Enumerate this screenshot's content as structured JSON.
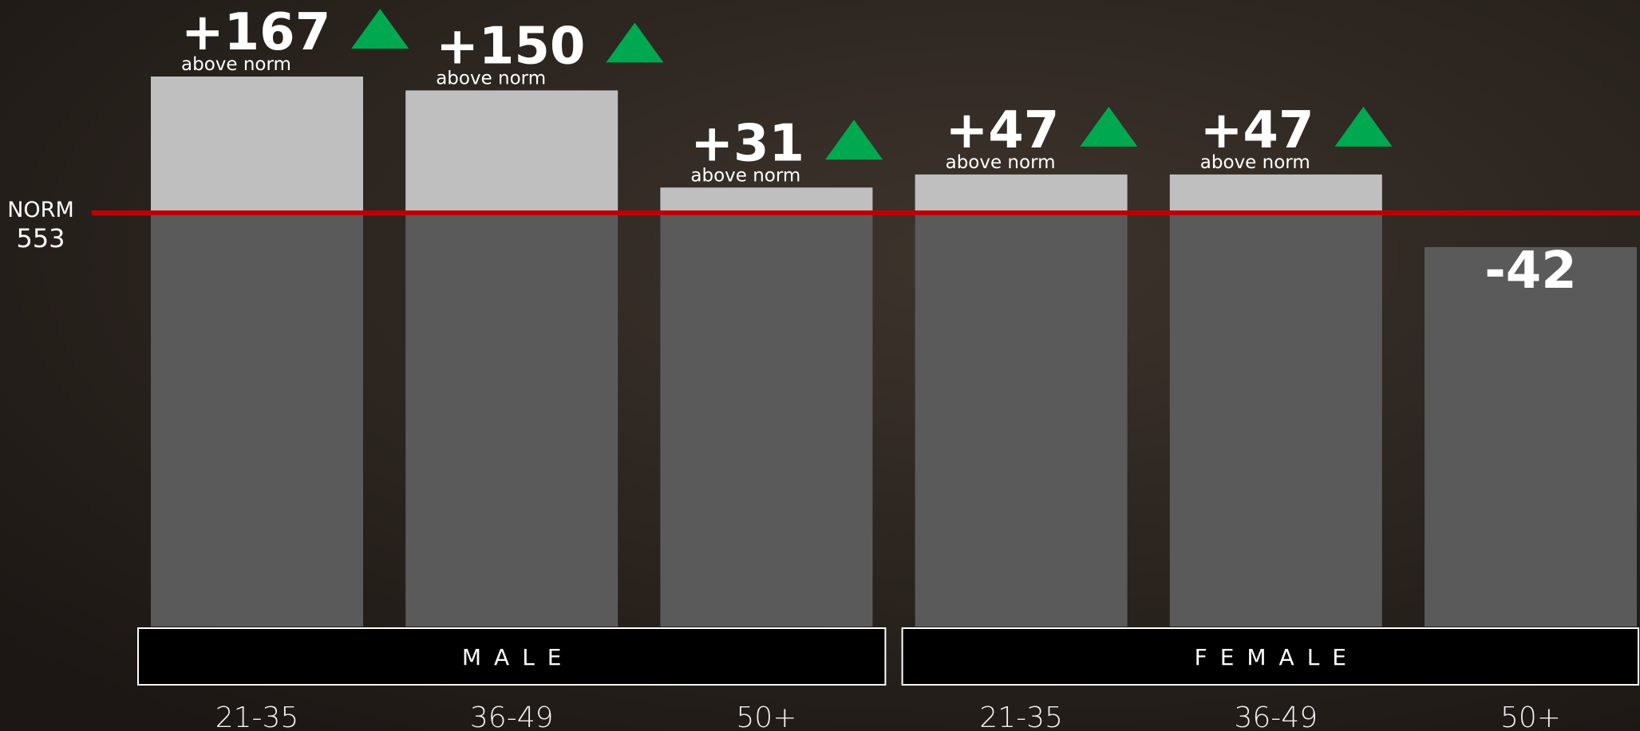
{
  "chart_data": {
    "type": "bar",
    "norm_label": "NORM",
    "norm": 553,
    "annotation": "above norm",
    "groups": [
      {
        "name": "MALE",
        "categories": [
          "21-35",
          "36-49",
          "50+"
        ],
        "values": [
          167,
          150,
          31
        ],
        "value_labels": [
          "+167",
          "+150",
          "+31"
        ]
      },
      {
        "name": "FEMALE",
        "categories": [
          "21-35",
          "36-49",
          "50+"
        ],
        "values": [
          47,
          47,
          -42
        ],
        "value_labels": [
          "+47",
          "+47",
          "-42"
        ]
      }
    ],
    "bar_color": "#5a5a5a",
    "above_color": "#bfbfbf",
    "norm_color": "#c00000",
    "up_color": "#00a94f"
  }
}
